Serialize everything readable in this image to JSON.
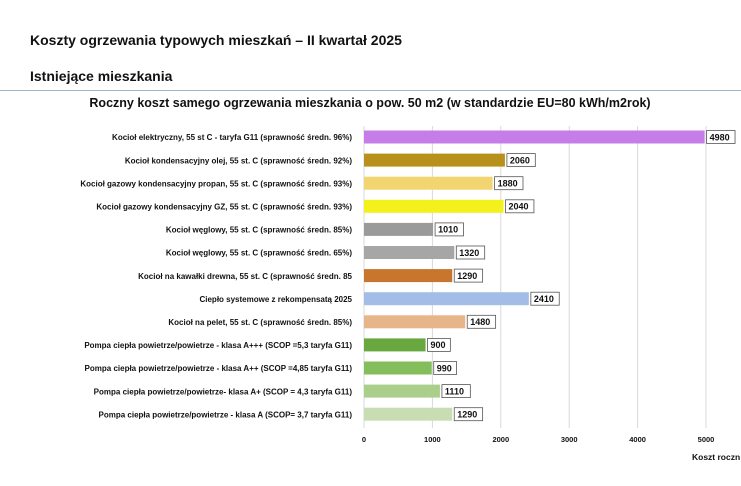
{
  "header": {
    "title": "Koszty ogrzewania typowych mieszkań – II kwartał 2025",
    "section": "Istniejące mieszkania"
  },
  "chart_data": {
    "type": "bar",
    "orientation": "horizontal",
    "title": "Roczny koszt samego ogrzewania mieszkania o pow. 50 m2 (w standardzie  EU=80 kWh/m2rok)",
    "xlabel": "Koszt roczn",
    "ylabel": "",
    "xlim": [
      0,
      5000
    ],
    "xticks": [
      0,
      1000,
      2000,
      3000,
      4000,
      5000
    ],
    "grid": true,
    "categories": [
      "Kocioł  elektryczny, 55 st C -  taryfa G11 (sprawność średn. 96%)",
      "Kocioł  kondensacyjny olej, 55 st. C (sprawność średn. 92%)",
      "Kocioł gazowy kondensacyjny propan, 55 st. C (sprawność średn. 93%)",
      "Kocioł gazowy kondensacyjny GZ, 55 st. C (sprawność średn. 93%)",
      "Kocioł węglowy,  55 st. C (sprawność średn. 85%)",
      "Kocioł węglowy, 55 st. C (sprawność średn. 65%)",
      "Kocioł na kawałki drewna, 55 st. C (sprawność średn. 85",
      "Ciepło systemowe z rekompensatą 2025",
      "Kocioł na pelet, 55 st. C (sprawność średn. 85%)",
      "Pompa ciepła powietrze/powietrze -  klasa A+++ (SCOP =5,3 taryfa G11)",
      "Pompa ciepła powietrze/powietrze - klasa A++ (SCOP =4,85 taryfa G11)",
      "Pompa ciepła powietrze/powietrze-  klasa A+ (SCOP = 4,3 taryfa G11)",
      "Pompa ciepła powietrze/powietrze - klasa A (SCOP= 3,7 taryfa G11)"
    ],
    "values": [
      4980,
      2060,
      1880,
      2040,
      1010,
      1320,
      1290,
      2410,
      1480,
      900,
      990,
      1110,
      1290
    ],
    "colors": [
      "#c77de8",
      "#b8901c",
      "#f2d470",
      "#f4f01c",
      "#9a9a9a",
      "#a6a6a6",
      "#c8752e",
      "#a4bde6",
      "#e8b48a",
      "#69a83e",
      "#84bd5c",
      "#a9cf8a",
      "#c9ddb3"
    ],
    "data_labels": [
      "4980",
      "2060",
      "1880",
      "2040",
      "1010",
      "1320",
      "1290",
      "2410",
      "1480",
      "900",
      "990",
      "1110",
      "1290"
    ]
  }
}
